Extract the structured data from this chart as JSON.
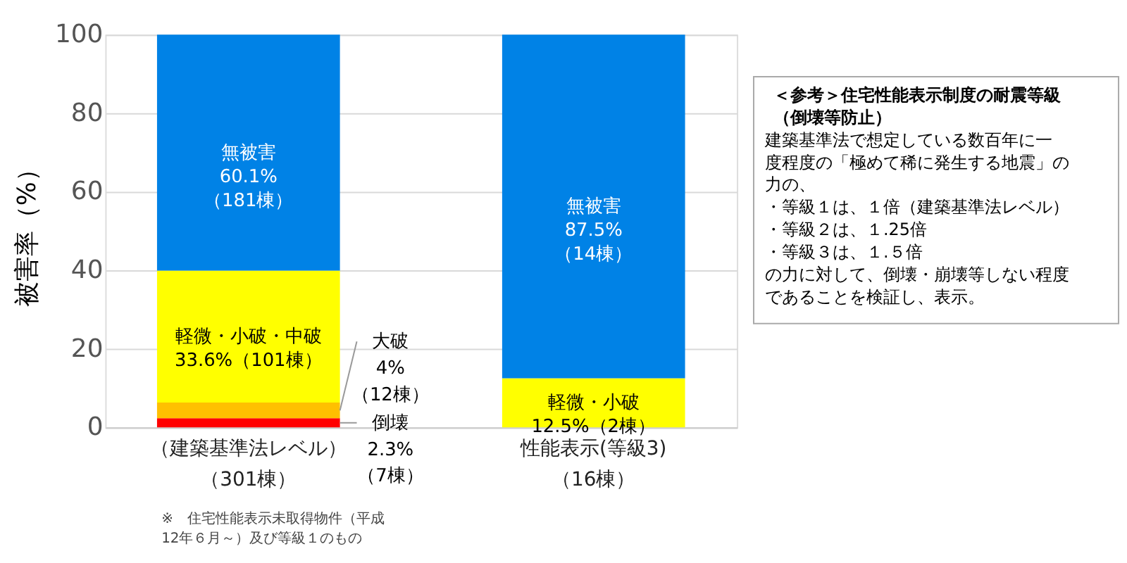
{
  "chart_data": {
    "type": "bar",
    "stacked": true,
    "ylabel": "被害率（%）",
    "categories": [
      "（建築基準法レベル）（301棟）",
      "性能表示(等級3)（16棟）"
    ],
    "series": [
      {
        "color": "#ff0000",
        "values": [
          2.3,
          null
        ],
        "value_labels": [
          "倒壊\n2.3%\n（7棟）",
          null
        ]
      },
      {
        "color": "#ffc000",
        "values": [
          4,
          null
        ],
        "value_labels": [
          "大破\n4%\n（12棟）",
          null
        ]
      },
      {
        "color": "#ffff00",
        "values": [
          33.6,
          12.5
        ],
        "value_labels": [
          "軽微・小破・中破\n33.6%（101棟）",
          "軽微・小破\n12.5%（2棟）"
        ]
      },
      {
        "color": "#0082e6",
        "values": [
          60.1,
          87.5
        ],
        "value_labels": [
          "無被害\n60.1%\n（181棟）",
          "無被害\n87.5%\n（14棟）"
        ]
      }
    ],
    "ylim": [
      0,
      100
    ],
    "yticks": [
      0,
      20,
      40,
      60,
      80,
      100
    ],
    "grid": "y",
    "legend": false,
    "annotations": [
      "※　住宅性能表示未取得物件（平成12年６月～）及び等級１のもの",
      "＜参考＞住宅性能表示制度の耐震等級（倒壊等防止）",
      "　建築基準法で想定している数百年に一度程度の「極めて稀に発生する地震」の力の、",
      "・等級１は、１倍（建築基準法レベル）",
      "・等級２は、１.25倍",
      "・等級３は、１.５倍",
      "の力に対して、倒壊・崩壊等しない程度であることを検証し、表示。"
    ]
  }
}
